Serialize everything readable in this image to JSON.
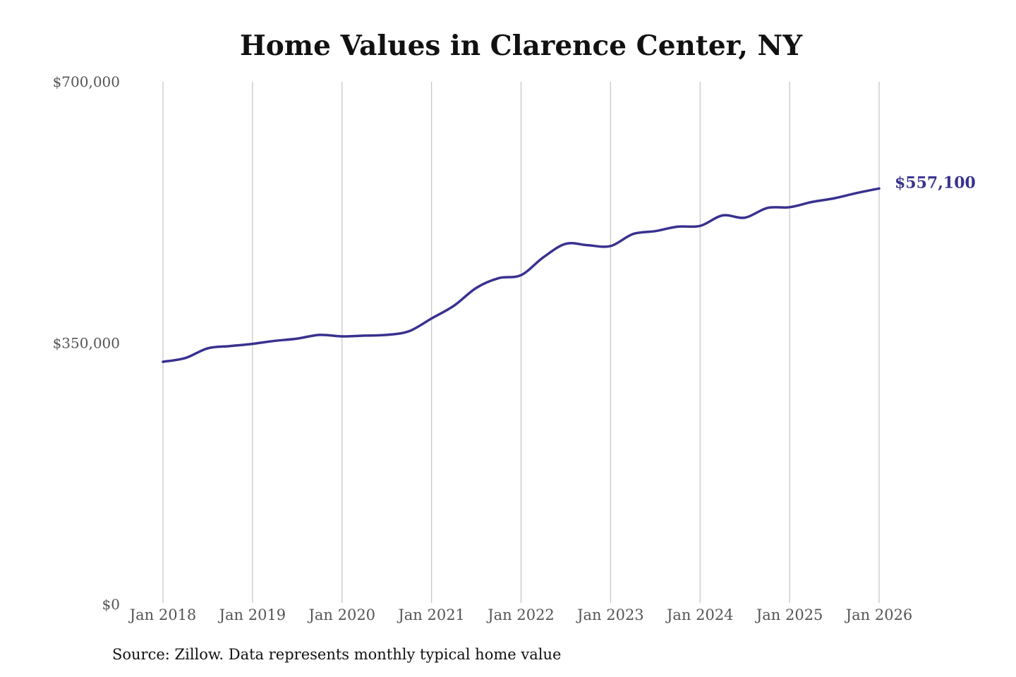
{
  "chart_data": {
    "type": "line",
    "title": "Home Values in Clarence Center, NY",
    "source": "Source: Zillow. Data represents monthly typical home value",
    "ylim": [
      0,
      700000
    ],
    "y_ticks": [
      0,
      350000,
      700000
    ],
    "y_tick_labels": [
      "$0",
      "$350,000",
      "$700,000"
    ],
    "x_range": [
      "2018-01",
      "2026-01"
    ],
    "x_ticks": [
      "2018-01",
      "2019-01",
      "2020-01",
      "2021-01",
      "2022-01",
      "2023-01",
      "2024-01",
      "2025-01",
      "2026-01"
    ],
    "x_tick_labels": [
      "Jan 2018",
      "Jan 2019",
      "Jan 2020",
      "Jan 2021",
      "Jan 2022",
      "Jan 2023",
      "Jan 2024",
      "Jan 2025",
      "Jan 2026"
    ],
    "grid": "vertical",
    "line_color": "#38318f",
    "end_label": "$557,100",
    "series": [
      {
        "x": [
          "2018-01",
          "2018-04",
          "2018-07",
          "2018-10",
          "2019-01",
          "2019-04",
          "2019-07",
          "2019-10",
          "2020-01",
          "2020-04",
          "2020-07",
          "2020-10",
          "2021-01",
          "2021-04",
          "2021-07",
          "2021-10",
          "2022-01",
          "2022-04",
          "2022-07",
          "2022-10",
          "2023-01",
          "2023-04",
          "2023-07",
          "2023-10",
          "2024-01",
          "2024-04",
          "2024-07",
          "2024-10",
          "2025-01",
          "2025-04",
          "2025-07",
          "2025-10",
          "2026-01"
        ],
        "values": [
          325000,
          330000,
          343000,
          346000,
          349000,
          353000,
          356000,
          361000,
          359000,
          360000,
          361000,
          366000,
          383000,
          400000,
          424000,
          437000,
          441000,
          465000,
          483000,
          481000,
          480000,
          496000,
          500000,
          506000,
          507000,
          521000,
          518000,
          531000,
          532000,
          539000,
          544000,
          551000,
          557100
        ]
      }
    ]
  }
}
